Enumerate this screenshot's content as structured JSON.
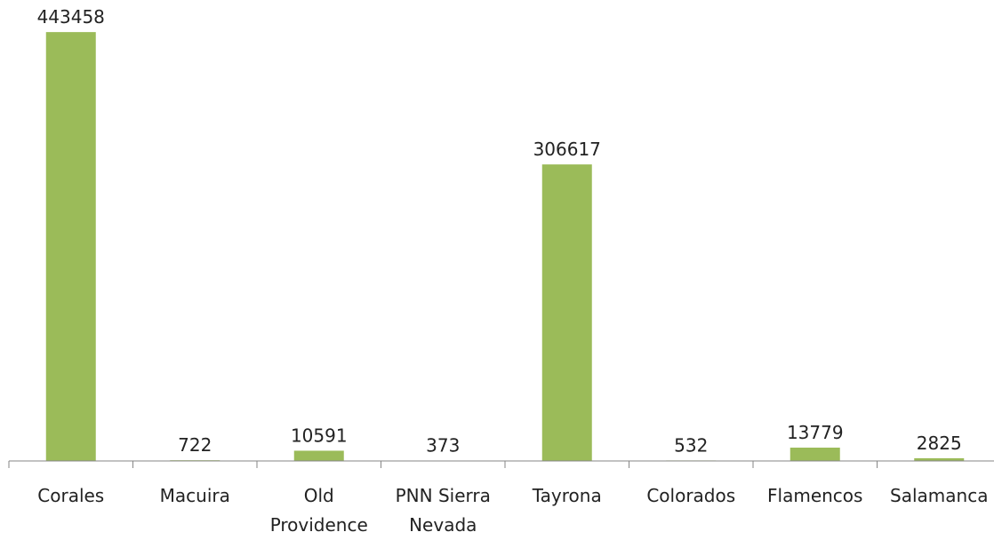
{
  "chart_data": {
    "type": "bar",
    "categories": [
      "Corales",
      "Macuira",
      "Old Providence",
      "PNN Sierra Nevada",
      "Tayrona",
      "Colorados",
      "Flamencos",
      "Salamanca"
    ],
    "values": [
      443458,
      722,
      10591,
      373,
      306617,
      532,
      13779,
      2825
    ],
    "color": "#9bbb59",
    "ylim": [
      0,
      450000
    ]
  }
}
